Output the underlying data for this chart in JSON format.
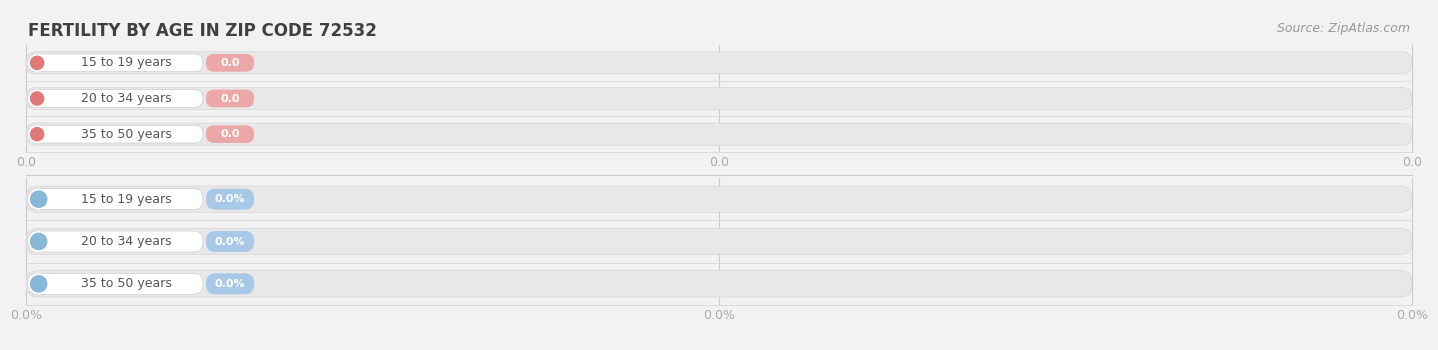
{
  "title": "FERTILITY BY AGE IN ZIP CODE 72532",
  "source_text": "Source: ZipAtlas.com",
  "background_color": "#f2f2f2",
  "top_section": {
    "categories": [
      "15 to 19 years",
      "20 to 34 years",
      "35 to 50 years"
    ],
    "values": [
      0.0,
      0.0,
      0.0
    ],
    "bar_bg_color": "#e8e8e8",
    "circle_color": "#e07878",
    "value_bg_color": "#eca8a8",
    "value_label": "0.0",
    "x_tick_labels": [
      "0.0",
      "0.0",
      "0.0"
    ]
  },
  "bottom_section": {
    "categories": [
      "15 to 19 years",
      "20 to 34 years",
      "35 to 50 years"
    ],
    "values": [
      0.0,
      0.0,
      0.0
    ],
    "bar_bg_color": "#e8e8e8",
    "circle_color": "#88b8d8",
    "value_bg_color": "#a8c8e8",
    "value_label": "0.0%",
    "x_tick_labels": [
      "0.0%",
      "0.0%",
      "0.0%"
    ]
  },
  "title_color": "#404040",
  "title_fontsize": 12,
  "source_fontsize": 9,
  "source_color": "#999999",
  "tick_label_color": "#aaaaaa",
  "tick_fontsize": 9,
  "label_color": "#555555",
  "label_fontsize": 9,
  "value_fontsize": 8,
  "gridline_color": "#cccccc"
}
